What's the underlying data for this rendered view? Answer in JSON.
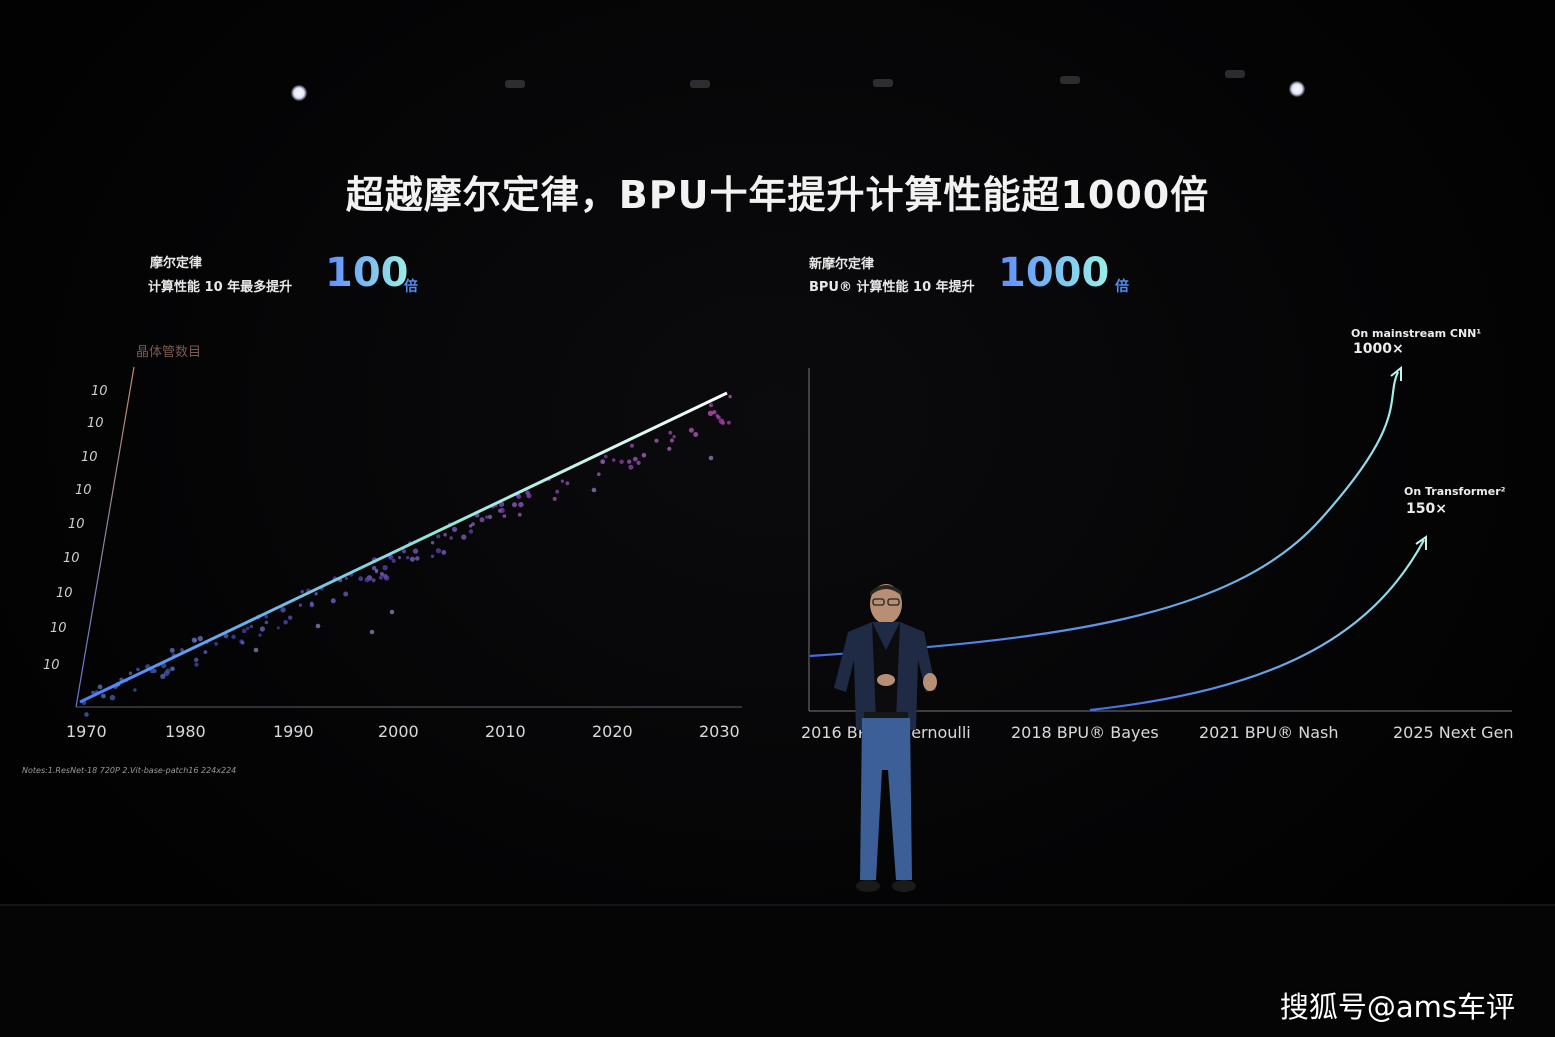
{
  "slide": {
    "title": "超越摩尔定律，BPU十年提升计算性能超1000倍",
    "left_panel": {
      "label": "摩尔定律",
      "desc": "计算性能 10 年最多提升",
      "value": "100",
      "unit": "倍",
      "y_axis_title": "晶体管数目",
      "y_tick_labels": [
        "10",
        "10",
        "10",
        "10",
        "10",
        "10",
        "10",
        "10",
        "10"
      ],
      "x_tick_labels": [
        "1970",
        "1980",
        "1990",
        "2000",
        "2010",
        "2020",
        "2030"
      ]
    },
    "right_panel": {
      "label": "新摩尔定律",
      "desc": "BPU® 计算性能 10 年提升",
      "value": "1000",
      "unit": "倍",
      "x_tick_labels": [
        "2016 BPU® Bernoulli",
        "2018 BPU® Bayes",
        "2021 BPU® Nash",
        "2025 Next Gen"
      ],
      "annotations": [
        {
          "label": "On mainstream CNN¹",
          "value": "1000×"
        },
        {
          "label": "On Transformer²",
          "value": "150×"
        }
      ]
    },
    "notes": "Notes:1.ResNet-18 720P 2.Vit-base-patch16 224x224"
  },
  "watermark": "搜狐号@ams车评",
  "colors": {
    "accent_blue": "#4e8cf5",
    "accent_teal": "#9af0e6",
    "background": "#000000"
  }
}
